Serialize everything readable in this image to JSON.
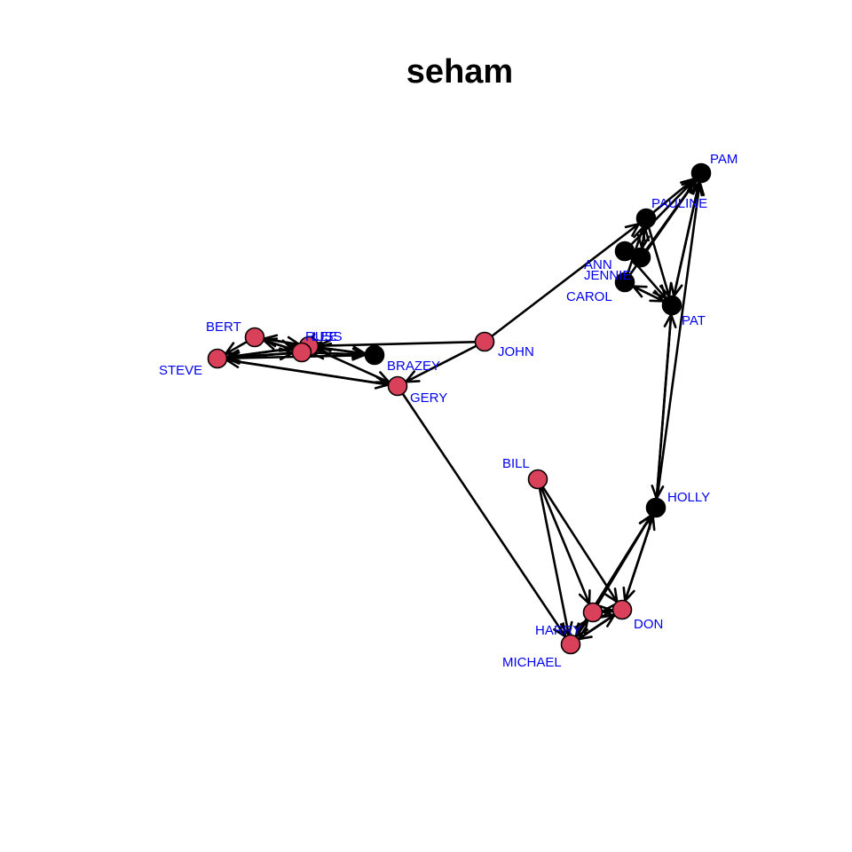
{
  "title": "seham",
  "colors": {
    "female": "#000000",
    "male": "#d9415a",
    "label": "#0000ee",
    "edge": "#000000"
  },
  "graph": {
    "directed": true,
    "nodes": [
      {
        "id": "PAM",
        "label": "PAM",
        "group": "female"
      },
      {
        "id": "PAULINE",
        "label": "PAULINE",
        "group": "female"
      },
      {
        "id": "ANN",
        "label": "ANN",
        "group": "female"
      },
      {
        "id": "JENNIE",
        "label": "JENNIE",
        "group": "female"
      },
      {
        "id": "CAROL",
        "label": "CAROL",
        "group": "female"
      },
      {
        "id": "PAT",
        "label": "PAT",
        "group": "female"
      },
      {
        "id": "HOLLY",
        "label": "HOLLY",
        "group": "female"
      },
      {
        "id": "BRAZEY",
        "label": "BRAZEY",
        "group": "female"
      },
      {
        "id": "JOHN",
        "label": "JOHN",
        "group": "male"
      },
      {
        "id": "GERY",
        "label": "GERY",
        "group": "male"
      },
      {
        "id": "BERT",
        "label": "BERT",
        "group": "male"
      },
      {
        "id": "STEVE",
        "label": "STEVE",
        "group": "male"
      },
      {
        "id": "RUSS",
        "label": "RUSS",
        "group": "male"
      },
      {
        "id": "LEE",
        "label": "LEE",
        "group": "male"
      },
      {
        "id": "BILL",
        "label": "BILL",
        "group": "male"
      },
      {
        "id": "HARRY",
        "label": "HARRY",
        "group": "male"
      },
      {
        "id": "DON",
        "label": "DON",
        "group": "male"
      },
      {
        "id": "MICHAEL",
        "label": "MICHAEL",
        "group": "male"
      }
    ],
    "edges": [
      {
        "from": "PAULINE",
        "to": "PAM"
      },
      {
        "from": "ANN",
        "to": "PAM"
      },
      {
        "from": "JENNIE",
        "to": "PAM"
      },
      {
        "from": "CAROL",
        "to": "PAM"
      },
      {
        "from": "PAT",
        "to": "PAM"
      },
      {
        "from": "HOLLY",
        "to": "PAM"
      },
      {
        "from": "PAM",
        "to": "PAT"
      },
      {
        "from": "PAULINE",
        "to": "PAT"
      },
      {
        "from": "ANN",
        "to": "PAT"
      },
      {
        "from": "JENNIE",
        "to": "PAULINE"
      },
      {
        "from": "CAROL",
        "to": "PAULINE"
      },
      {
        "from": "PAULINE",
        "to": "JENNIE"
      },
      {
        "from": "CAROL",
        "to": "PAT"
      },
      {
        "from": "PAT",
        "to": "CAROL"
      },
      {
        "from": "JOHN",
        "to": "PAULINE"
      },
      {
        "from": "JOHN",
        "to": "GERY"
      },
      {
        "from": "JOHN",
        "to": "RUSS"
      },
      {
        "from": "BRAZEY",
        "to": "RUSS"
      },
      {
        "from": "BRAZEY",
        "to": "LEE"
      },
      {
        "from": "BRAZEY",
        "to": "STEVE"
      },
      {
        "from": "RUSS",
        "to": "BRAZEY"
      },
      {
        "from": "LEE",
        "to": "BRAZEY"
      },
      {
        "from": "RUSS",
        "to": "STEVE"
      },
      {
        "from": "STEVE",
        "to": "RUSS"
      },
      {
        "from": "LEE",
        "to": "STEVE"
      },
      {
        "from": "STEVE",
        "to": "LEE"
      },
      {
        "from": "BERT",
        "to": "STEVE"
      },
      {
        "from": "BERT",
        "to": "RUSS"
      },
      {
        "from": "BERT",
        "to": "LEE"
      },
      {
        "from": "RUSS",
        "to": "BERT"
      },
      {
        "from": "LEE",
        "to": "BERT"
      },
      {
        "from": "RUSS",
        "to": "LEE"
      },
      {
        "from": "GERY",
        "to": "STEVE"
      },
      {
        "from": "RUSS",
        "to": "GERY"
      },
      {
        "from": "STEVE",
        "to": "GERY"
      },
      {
        "from": "GERY",
        "to": "MICHAEL"
      },
      {
        "from": "BILL",
        "to": "HARRY"
      },
      {
        "from": "BILL",
        "to": "DON"
      },
      {
        "from": "BILL",
        "to": "MICHAEL"
      },
      {
        "from": "HARRY",
        "to": "DON"
      },
      {
        "from": "DON",
        "to": "HARRY"
      },
      {
        "from": "HARRY",
        "to": "MICHAEL"
      },
      {
        "from": "MICHAEL",
        "to": "HARRY"
      },
      {
        "from": "MICHAEL",
        "to": "DON"
      },
      {
        "from": "DON",
        "to": "MICHAEL"
      },
      {
        "from": "HARRY",
        "to": "HOLLY"
      },
      {
        "from": "DON",
        "to": "HOLLY"
      },
      {
        "from": "MICHAEL",
        "to": "HOLLY"
      },
      {
        "from": "HOLLY",
        "to": "DON"
      },
      {
        "from": "PAT",
        "to": "HOLLY"
      },
      {
        "from": "HOLLY",
        "to": "PAT"
      }
    ]
  }
}
